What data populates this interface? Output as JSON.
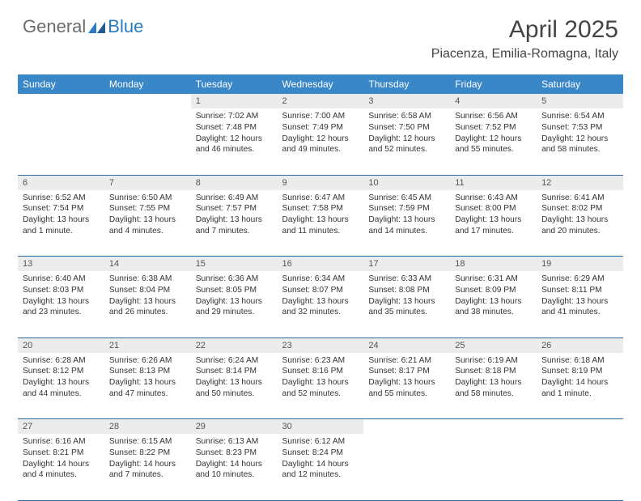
{
  "logo": {
    "text1": "General",
    "text2": "Blue"
  },
  "title": "April 2025",
  "location": "Piacenza, Emilia-Romagna, Italy",
  "colors": {
    "header_bg": "#3a87c8",
    "daynum_bg": "#ececec",
    "rule": "#2a6aa0",
    "logo_gray": "#6b6b6b",
    "logo_blue": "#2a7ac0"
  },
  "day_headers": [
    "Sunday",
    "Monday",
    "Tuesday",
    "Wednesday",
    "Thursday",
    "Friday",
    "Saturday"
  ],
  "weeks": [
    [
      null,
      null,
      {
        "n": "1",
        "sr": "7:02 AM",
        "ss": "7:48 PM",
        "dl": "12 hours and 46 minutes."
      },
      {
        "n": "2",
        "sr": "7:00 AM",
        "ss": "7:49 PM",
        "dl": "12 hours and 49 minutes."
      },
      {
        "n": "3",
        "sr": "6:58 AM",
        "ss": "7:50 PM",
        "dl": "12 hours and 52 minutes."
      },
      {
        "n": "4",
        "sr": "6:56 AM",
        "ss": "7:52 PM",
        "dl": "12 hours and 55 minutes."
      },
      {
        "n": "5",
        "sr": "6:54 AM",
        "ss": "7:53 PM",
        "dl": "12 hours and 58 minutes."
      }
    ],
    [
      {
        "n": "6",
        "sr": "6:52 AM",
        "ss": "7:54 PM",
        "dl": "13 hours and 1 minute."
      },
      {
        "n": "7",
        "sr": "6:50 AM",
        "ss": "7:55 PM",
        "dl": "13 hours and 4 minutes."
      },
      {
        "n": "8",
        "sr": "6:49 AM",
        "ss": "7:57 PM",
        "dl": "13 hours and 7 minutes."
      },
      {
        "n": "9",
        "sr": "6:47 AM",
        "ss": "7:58 PM",
        "dl": "13 hours and 11 minutes."
      },
      {
        "n": "10",
        "sr": "6:45 AM",
        "ss": "7:59 PM",
        "dl": "13 hours and 14 minutes."
      },
      {
        "n": "11",
        "sr": "6:43 AM",
        "ss": "8:00 PM",
        "dl": "13 hours and 17 minutes."
      },
      {
        "n": "12",
        "sr": "6:41 AM",
        "ss": "8:02 PM",
        "dl": "13 hours and 20 minutes."
      }
    ],
    [
      {
        "n": "13",
        "sr": "6:40 AM",
        "ss": "8:03 PM",
        "dl": "13 hours and 23 minutes."
      },
      {
        "n": "14",
        "sr": "6:38 AM",
        "ss": "8:04 PM",
        "dl": "13 hours and 26 minutes."
      },
      {
        "n": "15",
        "sr": "6:36 AM",
        "ss": "8:05 PM",
        "dl": "13 hours and 29 minutes."
      },
      {
        "n": "16",
        "sr": "6:34 AM",
        "ss": "8:07 PM",
        "dl": "13 hours and 32 minutes."
      },
      {
        "n": "17",
        "sr": "6:33 AM",
        "ss": "8:08 PM",
        "dl": "13 hours and 35 minutes."
      },
      {
        "n": "18",
        "sr": "6:31 AM",
        "ss": "8:09 PM",
        "dl": "13 hours and 38 minutes."
      },
      {
        "n": "19",
        "sr": "6:29 AM",
        "ss": "8:11 PM",
        "dl": "13 hours and 41 minutes."
      }
    ],
    [
      {
        "n": "20",
        "sr": "6:28 AM",
        "ss": "8:12 PM",
        "dl": "13 hours and 44 minutes."
      },
      {
        "n": "21",
        "sr": "6:26 AM",
        "ss": "8:13 PM",
        "dl": "13 hours and 47 minutes."
      },
      {
        "n": "22",
        "sr": "6:24 AM",
        "ss": "8:14 PM",
        "dl": "13 hours and 50 minutes."
      },
      {
        "n": "23",
        "sr": "6:23 AM",
        "ss": "8:16 PM",
        "dl": "13 hours and 52 minutes."
      },
      {
        "n": "24",
        "sr": "6:21 AM",
        "ss": "8:17 PM",
        "dl": "13 hours and 55 minutes."
      },
      {
        "n": "25",
        "sr": "6:19 AM",
        "ss": "8:18 PM",
        "dl": "13 hours and 58 minutes."
      },
      {
        "n": "26",
        "sr": "6:18 AM",
        "ss": "8:19 PM",
        "dl": "14 hours and 1 minute."
      }
    ],
    [
      {
        "n": "27",
        "sr": "6:16 AM",
        "ss": "8:21 PM",
        "dl": "14 hours and 4 minutes."
      },
      {
        "n": "28",
        "sr": "6:15 AM",
        "ss": "8:22 PM",
        "dl": "14 hours and 7 minutes."
      },
      {
        "n": "29",
        "sr": "6:13 AM",
        "ss": "8:23 PM",
        "dl": "14 hours and 10 minutes."
      },
      {
        "n": "30",
        "sr": "6:12 AM",
        "ss": "8:24 PM",
        "dl": "14 hours and 12 minutes."
      },
      null,
      null,
      null
    ]
  ],
  "labels": {
    "sunrise": "Sunrise: ",
    "sunset": "Sunset: ",
    "daylight": "Daylight: "
  }
}
